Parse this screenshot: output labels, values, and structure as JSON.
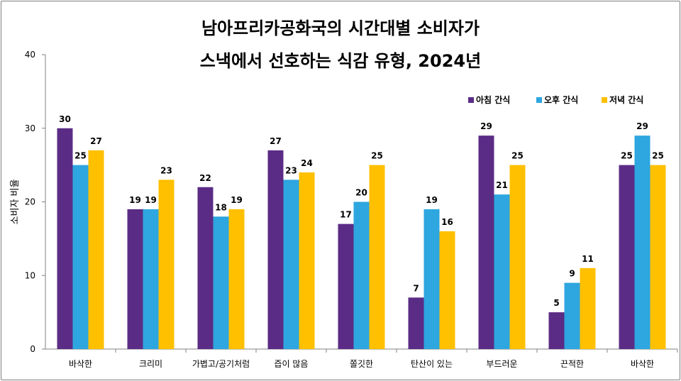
{
  "chart_data": {
    "type": "bar",
    "title": [
      "남아프리카공화국의 시간대별 소비자가",
      "스낵에서 선호하는 식감 유형, 2024년"
    ],
    "xlabel": "",
    "ylabel": "소비자 비율",
    "ylim": [
      0,
      40
    ],
    "yticks": [
      0,
      10,
      20,
      30,
      40
    ],
    "legend_position": "top-right",
    "categories": [
      "바삭한",
      "크리미",
      "가볍고/공기처럼",
      "즙이 많음",
      "쫄깃한",
      "탄산이 있는",
      "부드러운",
      "끈적한",
      "바삭한"
    ],
    "series": [
      {
        "name": "아침 간식",
        "color": "#5b2c86",
        "values": [
          30,
          19,
          22,
          27,
          17,
          7,
          29,
          5,
          25
        ]
      },
      {
        "name": "오후 간식",
        "color": "#2ea6df",
        "values": [
          25,
          19,
          18,
          23,
          20,
          19,
          21,
          9,
          29
        ]
      },
      {
        "name": "저녁 간식",
        "color": "#ffc000",
        "values": [
          27,
          23,
          19,
          24,
          25,
          16,
          25,
          11,
          25
        ]
      }
    ]
  }
}
